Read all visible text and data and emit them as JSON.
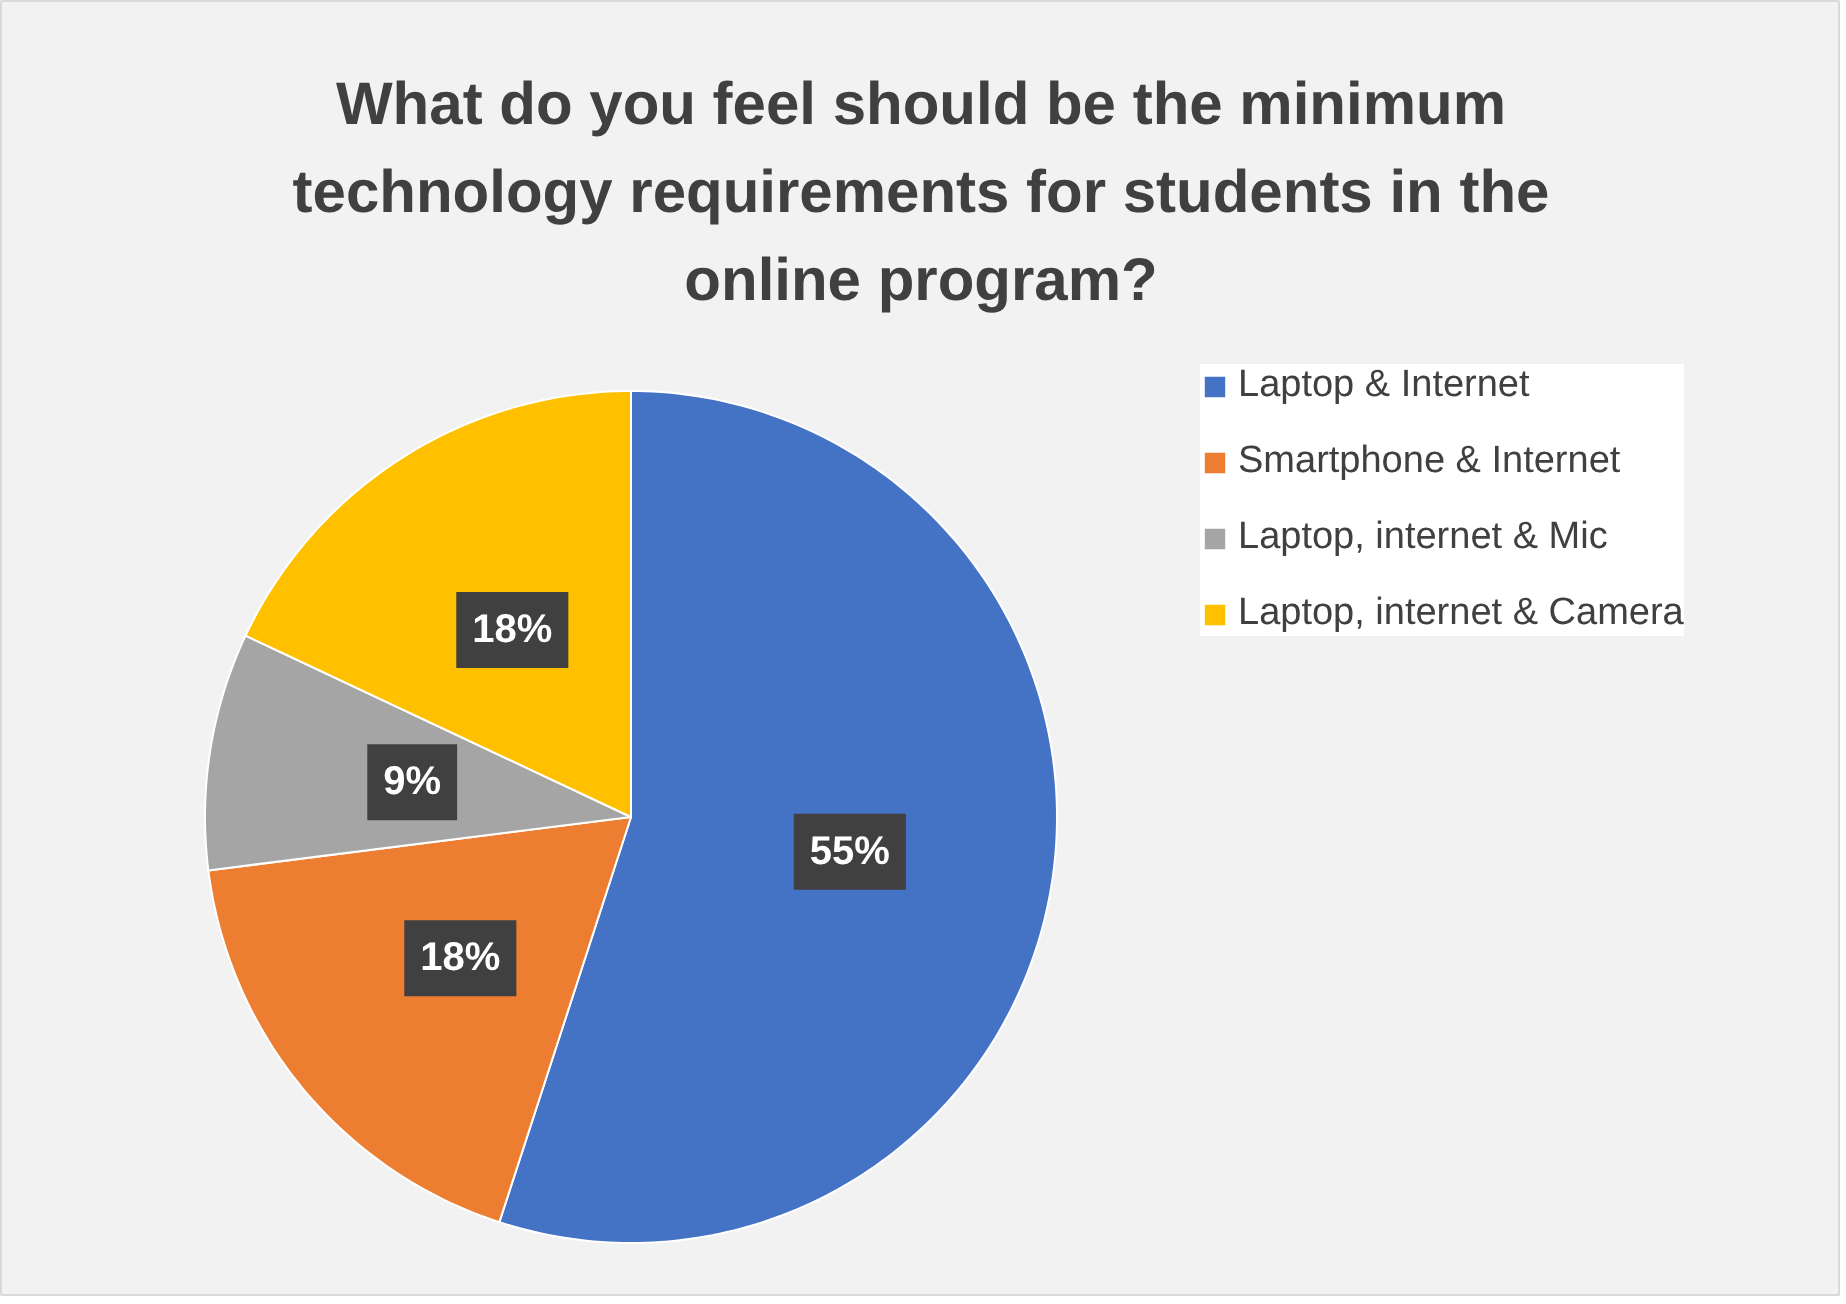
{
  "chart_data": {
    "type": "pie",
    "title": "What do you feel should be the minimum technology requirements for students in the online program?",
    "categories": [
      "Laptop & Internet",
      "Smartphone & Internet",
      "Laptop, internet & Mic",
      "Laptop, internet & Camera"
    ],
    "values": [
      55,
      18,
      9,
      18
    ],
    "colors": [
      "#4472c4",
      "#ed7d31",
      "#a5a5a5",
      "#ffc000"
    ],
    "value_labels": [
      "55%",
      "18%",
      "9%",
      "18%"
    ],
    "legend": "right"
  }
}
